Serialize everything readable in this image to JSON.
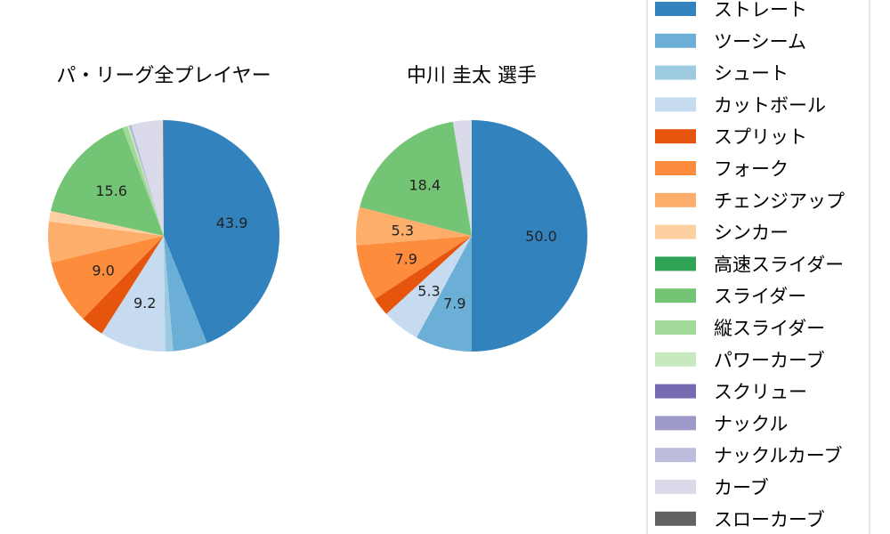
{
  "chart_data": [
    {
      "type": "pie",
      "title": "パ・リーグ全プレイヤー",
      "slices": [
        {
          "name": "ストレート",
          "value": 43.9,
          "label": "43.9"
        },
        {
          "name": "ツーシーム",
          "value": 4.8,
          "label": ""
        },
        {
          "name": "シュート",
          "value": 1.1,
          "label": ""
        },
        {
          "name": "カットボール",
          "value": 9.2,
          "label": "9.2"
        },
        {
          "name": "スプリット",
          "value": 3.3,
          "label": ""
        },
        {
          "name": "フォーク",
          "value": 9.0,
          "label": "9.0"
        },
        {
          "name": "チェンジアップ",
          "value": 5.7,
          "label": ""
        },
        {
          "name": "シンカー",
          "value": 1.5,
          "label": ""
        },
        {
          "name": "高速スライダー",
          "value": 0.1,
          "label": ""
        },
        {
          "name": "スライダー",
          "value": 15.6,
          "label": "15.6"
        },
        {
          "name": "縦スライダー",
          "value": 0.7,
          "label": ""
        },
        {
          "name": "パワーカーブ",
          "value": 0.3,
          "label": ""
        },
        {
          "name": "スクリュー",
          "value": 0.05,
          "label": ""
        },
        {
          "name": "ナックル",
          "value": 0.05,
          "label": ""
        },
        {
          "name": "ナックルカーブ",
          "value": 0.2,
          "label": ""
        },
        {
          "name": "カーブ",
          "value": 4.4,
          "label": ""
        },
        {
          "name": "スローカーブ",
          "value": 0.1,
          "label": ""
        }
      ]
    },
    {
      "type": "pie",
      "title": "中川 圭太  選手",
      "slices": [
        {
          "name": "ストレート",
          "value": 50.0,
          "label": "50.0"
        },
        {
          "name": "ツーシーム",
          "value": 7.9,
          "label": "7.9"
        },
        {
          "name": "カットボール",
          "value": 5.3,
          "label": "5.3"
        },
        {
          "name": "スプリット",
          "value": 2.6,
          "label": ""
        },
        {
          "name": "フォーク",
          "value": 7.9,
          "label": "7.9"
        },
        {
          "name": "チェンジアップ",
          "value": 5.3,
          "label": "5.3"
        },
        {
          "name": "スライダー",
          "value": 18.4,
          "label": "18.4"
        },
        {
          "name": "カーブ",
          "value": 2.6,
          "label": ""
        }
      ]
    }
  ],
  "legend": {
    "items": [
      {
        "name": "ストレート",
        "color": "#3182bd"
      },
      {
        "name": "ツーシーム",
        "color": "#6baed6"
      },
      {
        "name": "シュート",
        "color": "#9ecae1"
      },
      {
        "name": "カットボール",
        "color": "#c6dbef"
      },
      {
        "name": "スプリット",
        "color": "#e6550d"
      },
      {
        "name": "フォーク",
        "color": "#fd8d3c"
      },
      {
        "name": "チェンジアップ",
        "color": "#fdae6b"
      },
      {
        "name": "シンカー",
        "color": "#fdd0a2"
      },
      {
        "name": "高速スライダー",
        "color": "#31a354"
      },
      {
        "name": "スライダー",
        "color": "#74c476"
      },
      {
        "name": "縦スライダー",
        "color": "#a1d99b"
      },
      {
        "name": "パワーカーブ",
        "color": "#c7e9c0"
      },
      {
        "name": "スクリュー",
        "color": "#756bb1"
      },
      {
        "name": "ナックル",
        "color": "#9e9ac8"
      },
      {
        "name": "ナックルカーブ",
        "color": "#bcbddc"
      },
      {
        "name": "カーブ",
        "color": "#dadaeb"
      },
      {
        "name": "スローカーブ",
        "color": "#636363"
      }
    ]
  }
}
